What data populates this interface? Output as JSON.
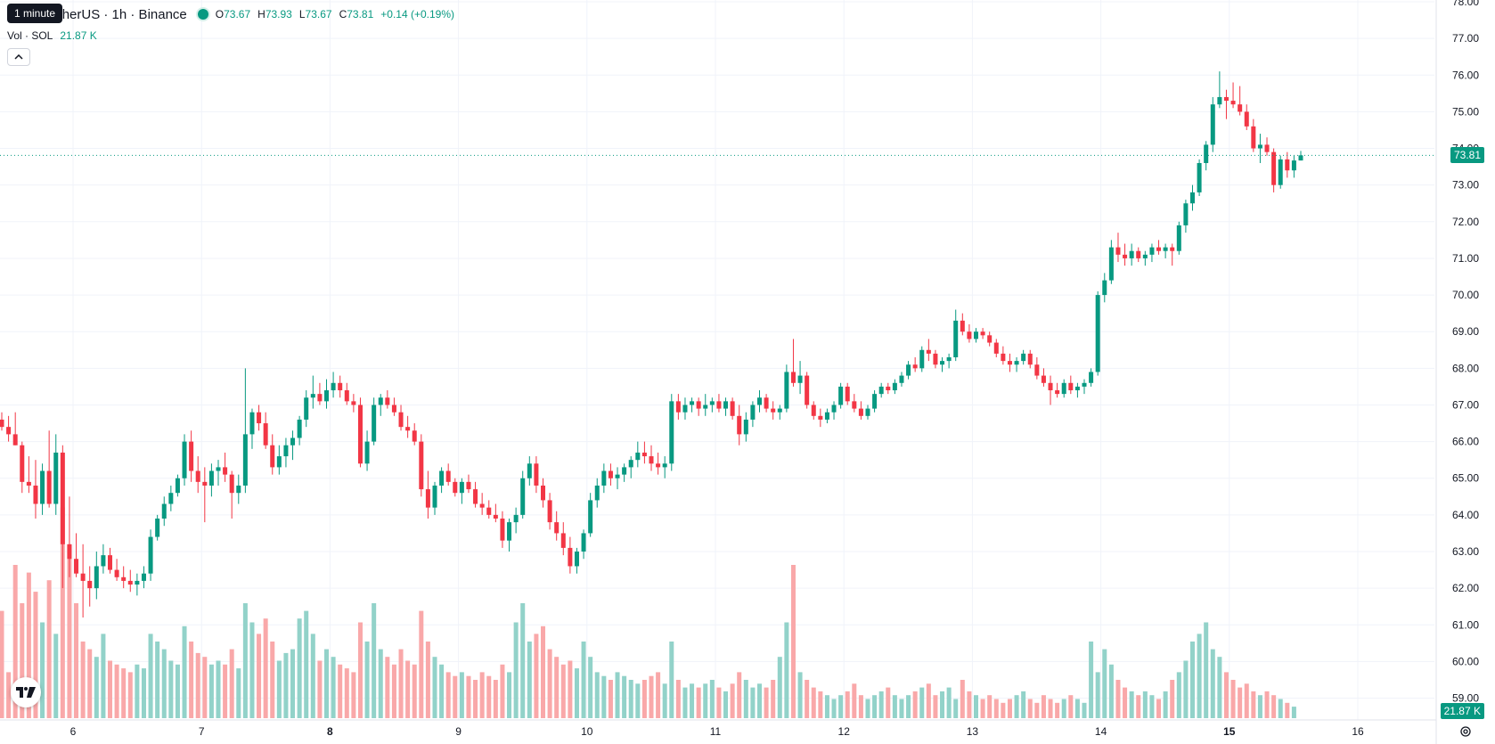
{
  "legend": {
    "symbol": "SOL / TetherUS · 1h · Binance",
    "open_label": "O",
    "open": "73.67",
    "high_label": "H",
    "high": "73.93",
    "low_label": "L",
    "low": "73.67",
    "close_label": "C",
    "close": "73.81",
    "change": "+0.14 (+0.19%)"
  },
  "tooltip": "1 minute",
  "volume_legend": {
    "label": "Vol · SOL",
    "value": "21.87 K"
  },
  "badges": {
    "last_price": "73.81",
    "last_volume": "21.87 K"
  },
  "icons": {
    "collapse": "chevron-up-icon",
    "logo": "tradingview-logo-icon",
    "settings": "settings-gear-icon"
  },
  "colors": {
    "up": "#089981",
    "down": "#F23645",
    "up_volume": "#92D2C9",
    "down_volume": "#F9A8A9"
  },
  "chart_data": {
    "type": "candlestick",
    "symbol": "SOL/USDT",
    "interval": "1h",
    "exchange": "Binance",
    "price_axis": {
      "min": 58.6,
      "max": 78.0,
      "ticks": [
        "59.00",
        "60.00",
        "61.00",
        "62.00",
        "63.00",
        "64.00",
        "65.00",
        "66.00",
        "67.00",
        "68.00",
        "69.00",
        "70.00",
        "71.00",
        "72.00",
        "73.00",
        "74.00",
        "75.00",
        "76.00",
        "77.00",
        "78.00"
      ]
    },
    "time_axis": {
      "labels": [
        "6",
        "7",
        "8",
        "9",
        "10",
        "11",
        "12",
        "13",
        "14",
        "15",
        "16"
      ],
      "bold": [
        "8",
        "15"
      ]
    },
    "last_price": 73.81,
    "last_volume": "21.87 K",
    "grid": true,
    "up_color": "#089981",
    "down_color": "#F23645",
    "candles": [
      [
        66.6,
        66.8,
        66.3,
        66.4
      ],
      [
        66.4,
        66.7,
        66.0,
        66.2
      ],
      [
        66.2,
        66.8,
        65.9,
        65.9
      ],
      [
        65.9,
        66.0,
        64.6,
        64.9
      ],
      [
        64.9,
        65.6,
        64.6,
        64.8
      ],
      [
        64.8,
        65.5,
        63.9,
        64.3
      ],
      [
        64.3,
        65.4,
        64.0,
        65.2
      ],
      [
        65.2,
        66.3,
        64.2,
        64.3
      ],
      [
        64.3,
        66.2,
        64.0,
        65.7
      ],
      [
        65.7,
        65.9,
        62.0,
        63.2
      ],
      [
        63.2,
        64.5,
        62.3,
        62.8
      ],
      [
        62.8,
        63.5,
        62.3,
        62.4
      ],
      [
        62.4,
        63.2,
        61.2,
        62.2
      ],
      [
        62.2,
        62.6,
        61.5,
        62.0
      ],
      [
        62.0,
        63.0,
        61.7,
        62.6
      ],
      [
        62.6,
        63.2,
        62.4,
        62.9
      ],
      [
        62.9,
        63.1,
        62.4,
        62.5
      ],
      [
        62.5,
        62.8,
        62.2,
        62.3
      ],
      [
        62.3,
        62.6,
        62.0,
        62.2
      ],
      [
        62.2,
        62.5,
        61.9,
        62.1
      ],
      [
        62.1,
        62.4,
        61.8,
        62.2
      ],
      [
        62.2,
        62.6,
        62.0,
        62.4
      ],
      [
        62.4,
        63.6,
        62.2,
        63.4
      ],
      [
        63.4,
        64.0,
        63.3,
        63.9
      ],
      [
        63.9,
        64.5,
        63.7,
        64.3
      ],
      [
        64.3,
        64.8,
        64.1,
        64.6
      ],
      [
        64.6,
        65.1,
        64.5,
        65.0
      ],
      [
        65.0,
        66.2,
        64.8,
        66.0
      ],
      [
        66.0,
        66.3,
        64.9,
        65.2
      ],
      [
        65.2,
        65.6,
        64.6,
        64.9
      ],
      [
        64.9,
        65.3,
        63.8,
        64.8
      ],
      [
        64.8,
        65.4,
        64.5,
        65.2
      ],
      [
        65.2,
        65.5,
        64.8,
        65.3
      ],
      [
        65.3,
        65.7,
        64.9,
        65.1
      ],
      [
        65.1,
        65.2,
        63.9,
        64.6
      ],
      [
        64.6,
        65.1,
        64.3,
        64.8
      ],
      [
        64.8,
        68.0,
        64.6,
        66.2
      ],
      [
        66.2,
        66.9,
        65.8,
        66.8
      ],
      [
        66.8,
        67.0,
        66.3,
        66.5
      ],
      [
        66.5,
        66.8,
        65.8,
        65.9
      ],
      [
        65.9,
        66.2,
        65.1,
        65.3
      ],
      [
        65.3,
        65.9,
        65.1,
        65.6
      ],
      [
        65.6,
        66.1,
        65.3,
        65.9
      ],
      [
        65.9,
        66.3,
        65.5,
        66.1
      ],
      [
        66.1,
        66.7,
        65.9,
        66.6
      ],
      [
        66.6,
        67.4,
        66.4,
        67.2
      ],
      [
        67.2,
        67.8,
        66.9,
        67.3
      ],
      [
        67.3,
        67.6,
        67.0,
        67.1
      ],
      [
        67.1,
        67.7,
        66.9,
        67.4
      ],
      [
        67.4,
        67.9,
        67.2,
        67.6
      ],
      [
        67.6,
        67.8,
        67.2,
        67.4
      ],
      [
        67.4,
        67.6,
        67.0,
        67.1
      ],
      [
        67.1,
        67.3,
        66.8,
        67.0
      ],
      [
        67.0,
        67.2,
        65.3,
        65.4
      ],
      [
        65.4,
        66.3,
        65.2,
        66.0
      ],
      [
        66.0,
        67.2,
        65.9,
        67.0
      ],
      [
        67.0,
        67.3,
        66.7,
        67.2
      ],
      [
        67.2,
        67.4,
        66.9,
        67.0
      ],
      [
        67.0,
        67.2,
        66.7,
        66.8
      ],
      [
        66.8,
        67.0,
        66.3,
        66.4
      ],
      [
        66.4,
        66.7,
        66.1,
        66.3
      ],
      [
        66.3,
        66.5,
        65.9,
        66.0
      ],
      [
        66.0,
        66.2,
        64.5,
        64.7
      ],
      [
        64.7,
        65.2,
        63.9,
        64.2
      ],
      [
        64.2,
        64.9,
        64.0,
        64.8
      ],
      [
        64.8,
        65.3,
        64.6,
        65.2
      ],
      [
        65.2,
        65.4,
        64.8,
        64.9
      ],
      [
        64.9,
        65.0,
        64.5,
        64.6
      ],
      [
        64.6,
        65.0,
        64.3,
        64.9
      ],
      [
        64.9,
        65.1,
        64.6,
        64.7
      ],
      [
        64.7,
        64.9,
        64.2,
        64.3
      ],
      [
        64.3,
        64.6,
        64.0,
        64.2
      ],
      [
        64.2,
        64.4,
        63.9,
        64.0
      ],
      [
        64.0,
        64.3,
        63.8,
        63.9
      ],
      [
        63.9,
        64.1,
        63.1,
        63.3
      ],
      [
        63.3,
        63.9,
        63.0,
        63.8
      ],
      [
        63.8,
        64.2,
        63.5,
        64.0
      ],
      [
        64.0,
        65.2,
        63.9,
        65.0
      ],
      [
        65.0,
        65.6,
        64.8,
        65.4
      ],
      [
        65.4,
        65.6,
        64.6,
        64.8
      ],
      [
        64.8,
        65.0,
        64.2,
        64.4
      ],
      [
        64.4,
        64.6,
        63.6,
        63.8
      ],
      [
        63.8,
        64.1,
        63.3,
        63.5
      ],
      [
        63.5,
        63.8,
        62.9,
        63.1
      ],
      [
        63.1,
        63.4,
        62.4,
        62.6
      ],
      [
        62.6,
        63.1,
        62.4,
        63.0
      ],
      [
        63.0,
        63.6,
        62.8,
        63.5
      ],
      [
        63.5,
        64.6,
        63.4,
        64.4
      ],
      [
        64.4,
        65.0,
        64.2,
        64.8
      ],
      [
        64.8,
        65.4,
        64.6,
        65.2
      ],
      [
        65.2,
        65.4,
        64.8,
        65.0
      ],
      [
        65.0,
        65.3,
        64.7,
        65.1
      ],
      [
        65.1,
        65.4,
        64.9,
        65.3
      ],
      [
        65.3,
        65.6,
        65.0,
        65.5
      ],
      [
        65.5,
        66.0,
        65.3,
        65.7
      ],
      [
        65.7,
        66.0,
        65.4,
        65.6
      ],
      [
        65.6,
        65.9,
        65.2,
        65.4
      ],
      [
        65.4,
        65.7,
        65.1,
        65.3
      ],
      [
        65.3,
        65.6,
        65.0,
        65.4
      ],
      [
        65.4,
        67.3,
        65.2,
        67.1
      ],
      [
        67.1,
        67.3,
        66.6,
        66.8
      ],
      [
        66.8,
        67.2,
        66.6,
        67.0
      ],
      [
        67.0,
        67.2,
        66.8,
        67.1
      ],
      [
        67.1,
        67.2,
        66.7,
        66.9
      ],
      [
        66.9,
        67.3,
        66.7,
        67.0
      ],
      [
        67.0,
        67.2,
        66.8,
        67.1
      ],
      [
        67.1,
        67.3,
        66.8,
        66.9
      ],
      [
        66.9,
        67.2,
        66.7,
        67.1
      ],
      [
        67.1,
        67.2,
        66.6,
        66.7
      ],
      [
        66.7,
        67.0,
        65.9,
        66.2
      ],
      [
        66.2,
        66.8,
        66.0,
        66.6
      ],
      [
        66.6,
        67.1,
        66.4,
        67.0
      ],
      [
        67.0,
        67.4,
        66.8,
        67.2
      ],
      [
        67.2,
        67.3,
        66.8,
        66.9
      ],
      [
        66.9,
        67.1,
        66.6,
        66.8
      ],
      [
        66.8,
        67.0,
        66.6,
        66.9
      ],
      [
        66.9,
        68.1,
        66.8,
        67.9
      ],
      [
        67.9,
        68.8,
        67.5,
        67.6
      ],
      [
        67.6,
        68.2,
        67.3,
        67.8
      ],
      [
        67.8,
        67.9,
        66.9,
        67.0
      ],
      [
        67.0,
        67.1,
        66.6,
        66.7
      ],
      [
        66.7,
        66.9,
        66.4,
        66.6
      ],
      [
        66.6,
        66.9,
        66.5,
        66.8
      ],
      [
        66.8,
        67.1,
        66.6,
        67.0
      ],
      [
        67.0,
        67.6,
        66.9,
        67.5
      ],
      [
        67.5,
        67.6,
        67.0,
        67.1
      ],
      [
        67.1,
        67.3,
        66.8,
        66.9
      ],
      [
        66.9,
        67.1,
        66.6,
        66.7
      ],
      [
        66.7,
        67.0,
        66.6,
        66.9
      ],
      [
        66.9,
        67.4,
        66.8,
        67.3
      ],
      [
        67.3,
        67.6,
        67.2,
        67.5
      ],
      [
        67.5,
        67.6,
        67.3,
        67.4
      ],
      [
        67.4,
        67.7,
        67.3,
        67.6
      ],
      [
        67.6,
        67.9,
        67.5,
        67.8
      ],
      [
        67.8,
        68.2,
        67.7,
        68.1
      ],
      [
        68.1,
        68.3,
        67.9,
        68.0
      ],
      [
        68.0,
        68.6,
        67.9,
        68.5
      ],
      [
        68.5,
        68.8,
        68.2,
        68.4
      ],
      [
        68.4,
        68.5,
        68.0,
        68.1
      ],
      [
        68.1,
        68.3,
        67.9,
        68.2
      ],
      [
        68.2,
        68.4,
        68.0,
        68.3
      ],
      [
        68.3,
        69.6,
        68.2,
        69.3
      ],
      [
        69.3,
        69.5,
        68.9,
        69.0
      ],
      [
        69.0,
        69.2,
        68.7,
        68.8
      ],
      [
        68.8,
        69.1,
        68.7,
        69.0
      ],
      [
        69.0,
        69.1,
        68.8,
        68.9
      ],
      [
        68.9,
        69.0,
        68.6,
        68.7
      ],
      [
        68.7,
        68.8,
        68.3,
        68.4
      ],
      [
        68.4,
        68.6,
        68.1,
        68.2
      ],
      [
        68.2,
        68.4,
        67.9,
        68.1
      ],
      [
        68.1,
        68.3,
        67.9,
        68.2
      ],
      [
        68.2,
        68.5,
        68.1,
        68.4
      ],
      [
        68.4,
        68.5,
        68.0,
        68.1
      ],
      [
        68.1,
        68.3,
        67.7,
        67.8
      ],
      [
        67.8,
        68.0,
        67.5,
        67.6
      ],
      [
        67.6,
        67.8,
        67.0,
        67.4
      ],
      [
        67.4,
        67.6,
        67.2,
        67.3
      ],
      [
        67.3,
        67.7,
        67.2,
        67.6
      ],
      [
        67.6,
        67.8,
        67.3,
        67.4
      ],
      [
        67.4,
        67.6,
        67.2,
        67.5
      ],
      [
        67.5,
        67.7,
        67.3,
        67.6
      ],
      [
        67.6,
        68.0,
        67.5,
        67.9
      ],
      [
        67.9,
        70.1,
        67.8,
        70.0
      ],
      [
        70.0,
        70.6,
        69.8,
        70.4
      ],
      [
        70.4,
        71.5,
        70.3,
        71.3
      ],
      [
        71.3,
        71.7,
        70.9,
        71.1
      ],
      [
        71.1,
        71.4,
        70.8,
        71.0
      ],
      [
        71.0,
        71.4,
        70.8,
        71.2
      ],
      [
        71.2,
        71.3,
        70.9,
        71.0
      ],
      [
        71.0,
        71.2,
        70.8,
        71.1
      ],
      [
        71.1,
        71.4,
        70.9,
        71.3
      ],
      [
        71.3,
        71.5,
        71.1,
        71.2
      ],
      [
        71.2,
        71.4,
        71.0,
        71.3
      ],
      [
        71.3,
        71.4,
        70.8,
        71.2
      ],
      [
        71.2,
        72.0,
        71.1,
        71.9
      ],
      [
        71.9,
        72.6,
        71.7,
        72.5
      ],
      [
        72.5,
        73.0,
        72.3,
        72.8
      ],
      [
        72.8,
        73.7,
        72.7,
        73.6
      ],
      [
        73.6,
        74.2,
        73.4,
        74.1
      ],
      [
        74.1,
        75.4,
        73.9,
        75.2
      ],
      [
        75.2,
        76.1,
        75.1,
        75.4
      ],
      [
        75.4,
        75.6,
        74.8,
        75.3
      ],
      [
        75.3,
        75.8,
        75.1,
        75.2
      ],
      [
        75.2,
        75.7,
        74.9,
        75.0
      ],
      [
        75.0,
        75.2,
        74.5,
        74.6
      ],
      [
        74.6,
        74.8,
        73.9,
        74.0
      ],
      [
        74.0,
        74.4,
        73.6,
        74.1
      ],
      [
        74.1,
        74.3,
        73.8,
        73.9
      ],
      [
        73.9,
        74.0,
        72.8,
        73.0
      ],
      [
        73.0,
        73.8,
        72.9,
        73.7
      ],
      [
        73.7,
        73.9,
        73.2,
        73.4
      ],
      [
        73.4,
        73.8,
        73.2,
        73.67
      ],
      [
        73.67,
        73.93,
        73.67,
        73.81
      ]
    ],
    "volumes": [
      28,
      12,
      40,
      30,
      38,
      33,
      25,
      36,
      22,
      55,
      45,
      30,
      20,
      18,
      16,
      22,
      15,
      14,
      13,
      12,
      14,
      13,
      22,
      20,
      18,
      15,
      14,
      24,
      20,
      17,
      16,
      14,
      15,
      14,
      18,
      13,
      30,
      25,
      22,
      26,
      20,
      15,
      17,
      18,
      26,
      28,
      22,
      15,
      18,
      16,
      14,
      13,
      12,
      25,
      20,
      30,
      18,
      16,
      14,
      18,
      15,
      14,
      28,
      20,
      16,
      14,
      12,
      11,
      12,
      11,
      10,
      12,
      11,
      10,
      14,
      12,
      25,
      30,
      20,
      22,
      24,
      18,
      16,
      14,
      15,
      13,
      20,
      16,
      12,
      11,
      10,
      12,
      11,
      10,
      9,
      10,
      11,
      12,
      9,
      20,
      10,
      8,
      9,
      8,
      9,
      10,
      8,
      7,
      9,
      12,
      10,
      8,
      9,
      8,
      10,
      16,
      25,
      40,
      12,
      10,
      8,
      7,
      6,
      5,
      6,
      7,
      9,
      6,
      5,
      6,
      7,
      8,
      6,
      5,
      6,
      7,
      8,
      9,
      6,
      7,
      8,
      5,
      10,
      7,
      6,
      5,
      6,
      5,
      4,
      5,
      6,
      7,
      5,
      4,
      6,
      5,
      4,
      5,
      6,
      5,
      4,
      20,
      12,
      18,
      14,
      10,
      8,
      7,
      6,
      7,
      6,
      5,
      7,
      10,
      12,
      15,
      20,
      22,
      25,
      18,
      16,
      12,
      10,
      8,
      9,
      7,
      6,
      7,
      6,
      5,
      4,
      3
    ],
    "volume_ymax": 50
  }
}
